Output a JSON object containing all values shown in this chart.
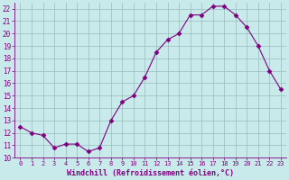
{
  "x": [
    0,
    1,
    2,
    3,
    4,
    5,
    6,
    7,
    8,
    9,
    10,
    11,
    12,
    13,
    14,
    15,
    16,
    17,
    18,
    19,
    20,
    21,
    22,
    23
  ],
  "y": [
    12.5,
    12.0,
    11.8,
    10.8,
    11.1,
    11.1,
    10.5,
    10.8,
    13.0,
    14.5,
    15.0,
    16.5,
    18.5,
    19.5,
    20.0,
    21.5,
    21.5,
    22.2,
    22.2,
    21.5,
    20.5,
    19.0,
    17.0,
    15.5
  ],
  "line_color": "#800080",
  "marker": "D",
  "marker_size": 2.5,
  "bg_color": "#c8eaea",
  "grid_color": "#9abcbc",
  "xlabel": "Windchill (Refroidissement éolien,°C)",
  "ylim": [
    10,
    22.5
  ],
  "xlim": [
    -0.5,
    23.5
  ],
  "yticks": [
    10,
    11,
    12,
    13,
    14,
    15,
    16,
    17,
    18,
    19,
    20,
    21,
    22
  ],
  "xticks": [
    0,
    1,
    2,
    3,
    4,
    5,
    6,
    7,
    8,
    9,
    10,
    11,
    12,
    13,
    14,
    15,
    16,
    17,
    18,
    19,
    20,
    21,
    22,
    23
  ],
  "color": "#800080"
}
